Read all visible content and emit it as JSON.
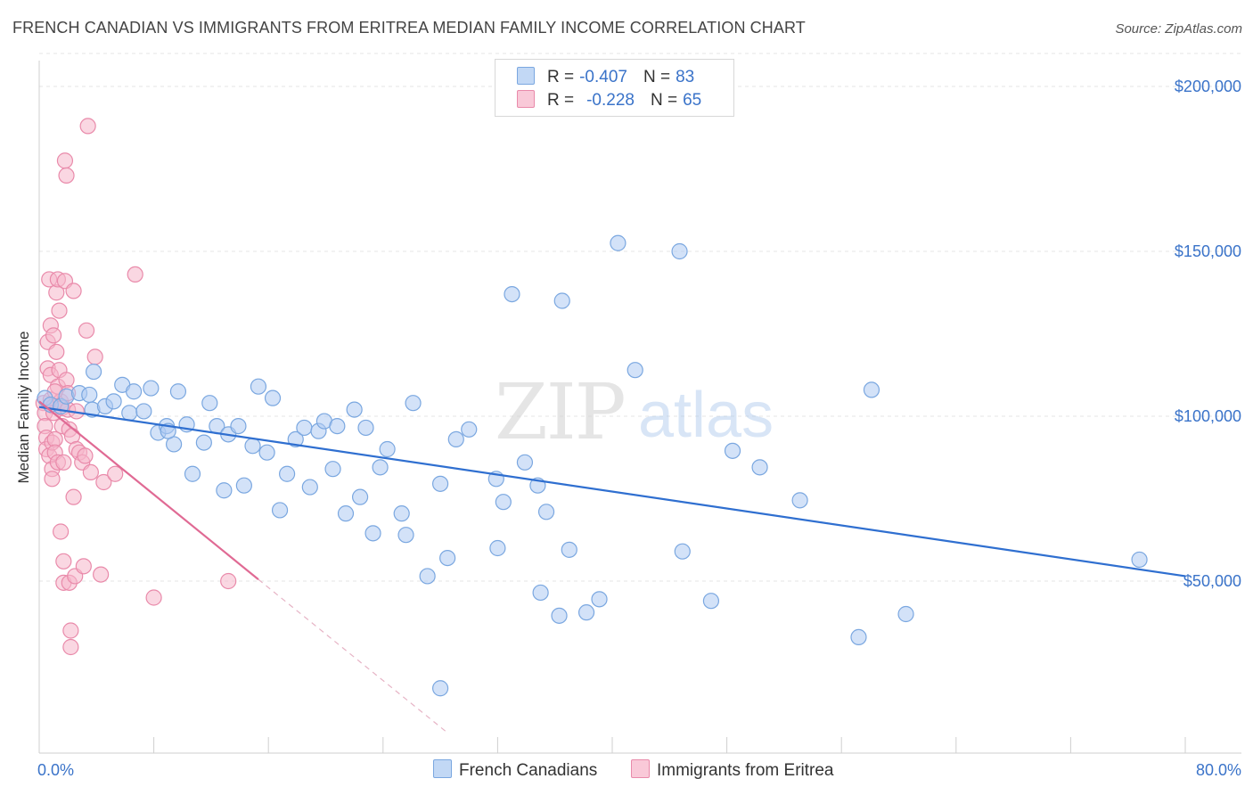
{
  "title": "FRENCH CANADIAN VS IMMIGRANTS FROM ERITREA MEDIAN FAMILY INCOME CORRELATION CHART",
  "source": "Source: ZipAtlas.com",
  "watermark": {
    "zip": "ZIP",
    "atlas": "atlas"
  },
  "legend": {
    "r_label": "R =",
    "n_label": "N =",
    "blue": {
      "r": "-0.407",
      "n": "83"
    },
    "pink": {
      "r": "-0.228",
      "n": "65"
    }
  },
  "colors": {
    "blue_fill": "#aecbf2",
    "blue_stroke": "#7aa7e0",
    "blue_line": "#2f6fd0",
    "pink_fill": "#f6b7cb",
    "pink_stroke": "#e98aaa",
    "pink_line": "#e06a94",
    "axis_text": "#3a73c9",
    "grid": "#e4e4e4"
  },
  "chart_data": {
    "type": "scatter",
    "xlabel": "",
    "ylabel": "Median Family Income",
    "xlim": [
      0,
      80
    ],
    "ylim": [
      5000,
      215000
    ],
    "x_tick_labels": {
      "min": "0.0%",
      "max": "80.0%"
    },
    "y_ticks": [
      {
        "value": 50000,
        "label": "$50,000"
      },
      {
        "value": 100000,
        "label": "$100,000"
      },
      {
        "value": 150000,
        "label": "$150,000"
      },
      {
        "value": 200000,
        "label": "$200,000"
      }
    ],
    "grid": true,
    "legend_position": "bottom",
    "series": [
      {
        "name": "French Canadians",
        "color": "#7aa7e0",
        "trend": {
          "x": [
            0,
            80
          ],
          "y": [
            102800,
            51500
          ],
          "extended": false
        },
        "points": [
          [
            0.4,
            105.5
          ],
          [
            0.8,
            103.5
          ],
          [
            1.5,
            103.0
          ],
          [
            1.9,
            106.0
          ],
          [
            2.8,
            107.0
          ],
          [
            3.5,
            106.5
          ],
          [
            3.7,
            102.0
          ],
          [
            3.8,
            113.5
          ],
          [
            4.6,
            103.0
          ],
          [
            5.2,
            104.5
          ],
          [
            5.8,
            109.5
          ],
          [
            6.3,
            101.0
          ],
          [
            6.6,
            107.5
          ],
          [
            7.3,
            101.5
          ],
          [
            7.8,
            108.5
          ],
          [
            8.3,
            95.0
          ],
          [
            8.9,
            97.0
          ],
          [
            9.4,
            91.5
          ],
          [
            9.7,
            107.5
          ],
          [
            10.3,
            97.5
          ],
          [
            10.7,
            82.5
          ],
          [
            11.5,
            92.0
          ],
          [
            11.9,
            104.0
          ],
          [
            12.4,
            97.0
          ],
          [
            12.9,
            77.5
          ],
          [
            13.2,
            94.5
          ],
          [
            13.9,
            97.0
          ],
          [
            14.3,
            79.0
          ],
          [
            14.9,
            91.0
          ],
          [
            15.3,
            109.0
          ],
          [
            15.9,
            89.0
          ],
          [
            16.3,
            105.5
          ],
          [
            16.8,
            71.5
          ],
          [
            17.3,
            82.5
          ],
          [
            17.9,
            93.0
          ],
          [
            18.5,
            96.5
          ],
          [
            18.9,
            78.5
          ],
          [
            19.5,
            95.5
          ],
          [
            19.9,
            98.5
          ],
          [
            20.5,
            84.0
          ],
          [
            20.8,
            97.0
          ],
          [
            21.4,
            70.5
          ],
          [
            22.0,
            102.0
          ],
          [
            22.4,
            75.5
          ],
          [
            22.8,
            96.5
          ],
          [
            23.3,
            64.5
          ],
          [
            23.8,
            84.5
          ],
          [
            24.3,
            90.0
          ],
          [
            25.3,
            70.5
          ],
          [
            25.6,
            64.0
          ],
          [
            26.1,
            104.0
          ],
          [
            27.1,
            51.5
          ],
          [
            28.0,
            79.5
          ],
          [
            28.5,
            57.0
          ],
          [
            29.1,
            93.0
          ],
          [
            30.0,
            96.0
          ],
          [
            31.9,
            81.0
          ],
          [
            32.0,
            60.0
          ],
          [
            32.4,
            74.0
          ],
          [
            33.0,
            137.0
          ],
          [
            33.9,
            86.0
          ],
          [
            34.8,
            79.0
          ],
          [
            35.0,
            46.5
          ],
          [
            35.4,
            71.0
          ],
          [
            36.3,
            39.5
          ],
          [
            36.5,
            135.0
          ],
          [
            37.0,
            59.5
          ],
          [
            38.2,
            40.5
          ],
          [
            39.1,
            44.5
          ],
          [
            40.4,
            152.5
          ],
          [
            41.6,
            114.0
          ],
          [
            44.7,
            150.0
          ],
          [
            44.9,
            59.0
          ],
          [
            46.9,
            44.0
          ],
          [
            48.4,
            89.5
          ],
          [
            50.3,
            84.5
          ],
          [
            53.1,
            74.5
          ],
          [
            57.2,
            33.0
          ],
          [
            58.1,
            108.0
          ],
          [
            60.5,
            40.0
          ],
          [
            76.8,
            56.5
          ],
          [
            28.0,
            17.5
          ],
          [
            9.0,
            95.5
          ]
        ]
      },
      {
        "name": "Immigrants from Eritrea",
        "color": "#e98aaa",
        "trend": {
          "x": [
            0,
            15.3
          ],
          "y": [
            104500,
            50500
          ],
          "dashed_to": [
            28.5,
            4000
          ]
        },
        "points": [
          [
            0.3,
            104.0
          ],
          [
            0.4,
            101.0
          ],
          [
            0.4,
            97.0
          ],
          [
            0.5,
            93.5
          ],
          [
            0.5,
            90.0
          ],
          [
            0.6,
            114.5
          ],
          [
            0.6,
            122.5
          ],
          [
            0.7,
            88.0
          ],
          [
            0.7,
            141.5
          ],
          [
            0.8,
            127.5
          ],
          [
            0.8,
            112.5
          ],
          [
            0.8,
            105.0
          ],
          [
            0.9,
            92.0
          ],
          [
            0.9,
            84.0
          ],
          [
            0.9,
            81.0
          ],
          [
            1.0,
            124.5
          ],
          [
            1.0,
            103.0
          ],
          [
            1.0,
            101.0
          ],
          [
            1.1,
            93.0
          ],
          [
            1.1,
            89.0
          ],
          [
            1.2,
            137.5
          ],
          [
            1.2,
            119.5
          ],
          [
            1.3,
            141.5
          ],
          [
            1.3,
            109.0
          ],
          [
            1.3,
            86.0
          ],
          [
            1.4,
            132.0
          ],
          [
            1.4,
            114.0
          ],
          [
            1.5,
            104.5
          ],
          [
            1.5,
            65.0
          ],
          [
            1.6,
            102.5
          ],
          [
            1.6,
            97.0
          ],
          [
            1.7,
            86.0
          ],
          [
            1.7,
            56.0
          ],
          [
            1.7,
            49.5
          ],
          [
            1.8,
            177.5
          ],
          [
            1.8,
            141.0
          ],
          [
            1.9,
            173.0
          ],
          [
            1.9,
            111.0
          ],
          [
            2.0,
            107.0
          ],
          [
            2.0,
            102.0
          ],
          [
            2.1,
            96.0
          ],
          [
            2.1,
            49.5
          ],
          [
            2.2,
            35.0
          ],
          [
            2.2,
            30.0
          ],
          [
            2.3,
            94.0
          ],
          [
            2.4,
            138.0
          ],
          [
            2.4,
            75.5
          ],
          [
            2.5,
            51.5
          ],
          [
            2.6,
            90.0
          ],
          [
            2.8,
            89.0
          ],
          [
            3.0,
            86.0
          ],
          [
            3.1,
            54.5
          ],
          [
            3.2,
            88.0
          ],
          [
            3.3,
            126.0
          ],
          [
            3.4,
            188.0
          ],
          [
            3.6,
            83.0
          ],
          [
            3.9,
            118.0
          ],
          [
            4.3,
            52.0
          ],
          [
            4.5,
            80.0
          ],
          [
            5.3,
            82.5
          ],
          [
            6.7,
            143.0
          ],
          [
            8.0,
            45.0
          ],
          [
            13.2,
            50.0
          ],
          [
            1.1,
            107.5
          ],
          [
            2.6,
            101.5
          ]
        ]
      }
    ]
  }
}
